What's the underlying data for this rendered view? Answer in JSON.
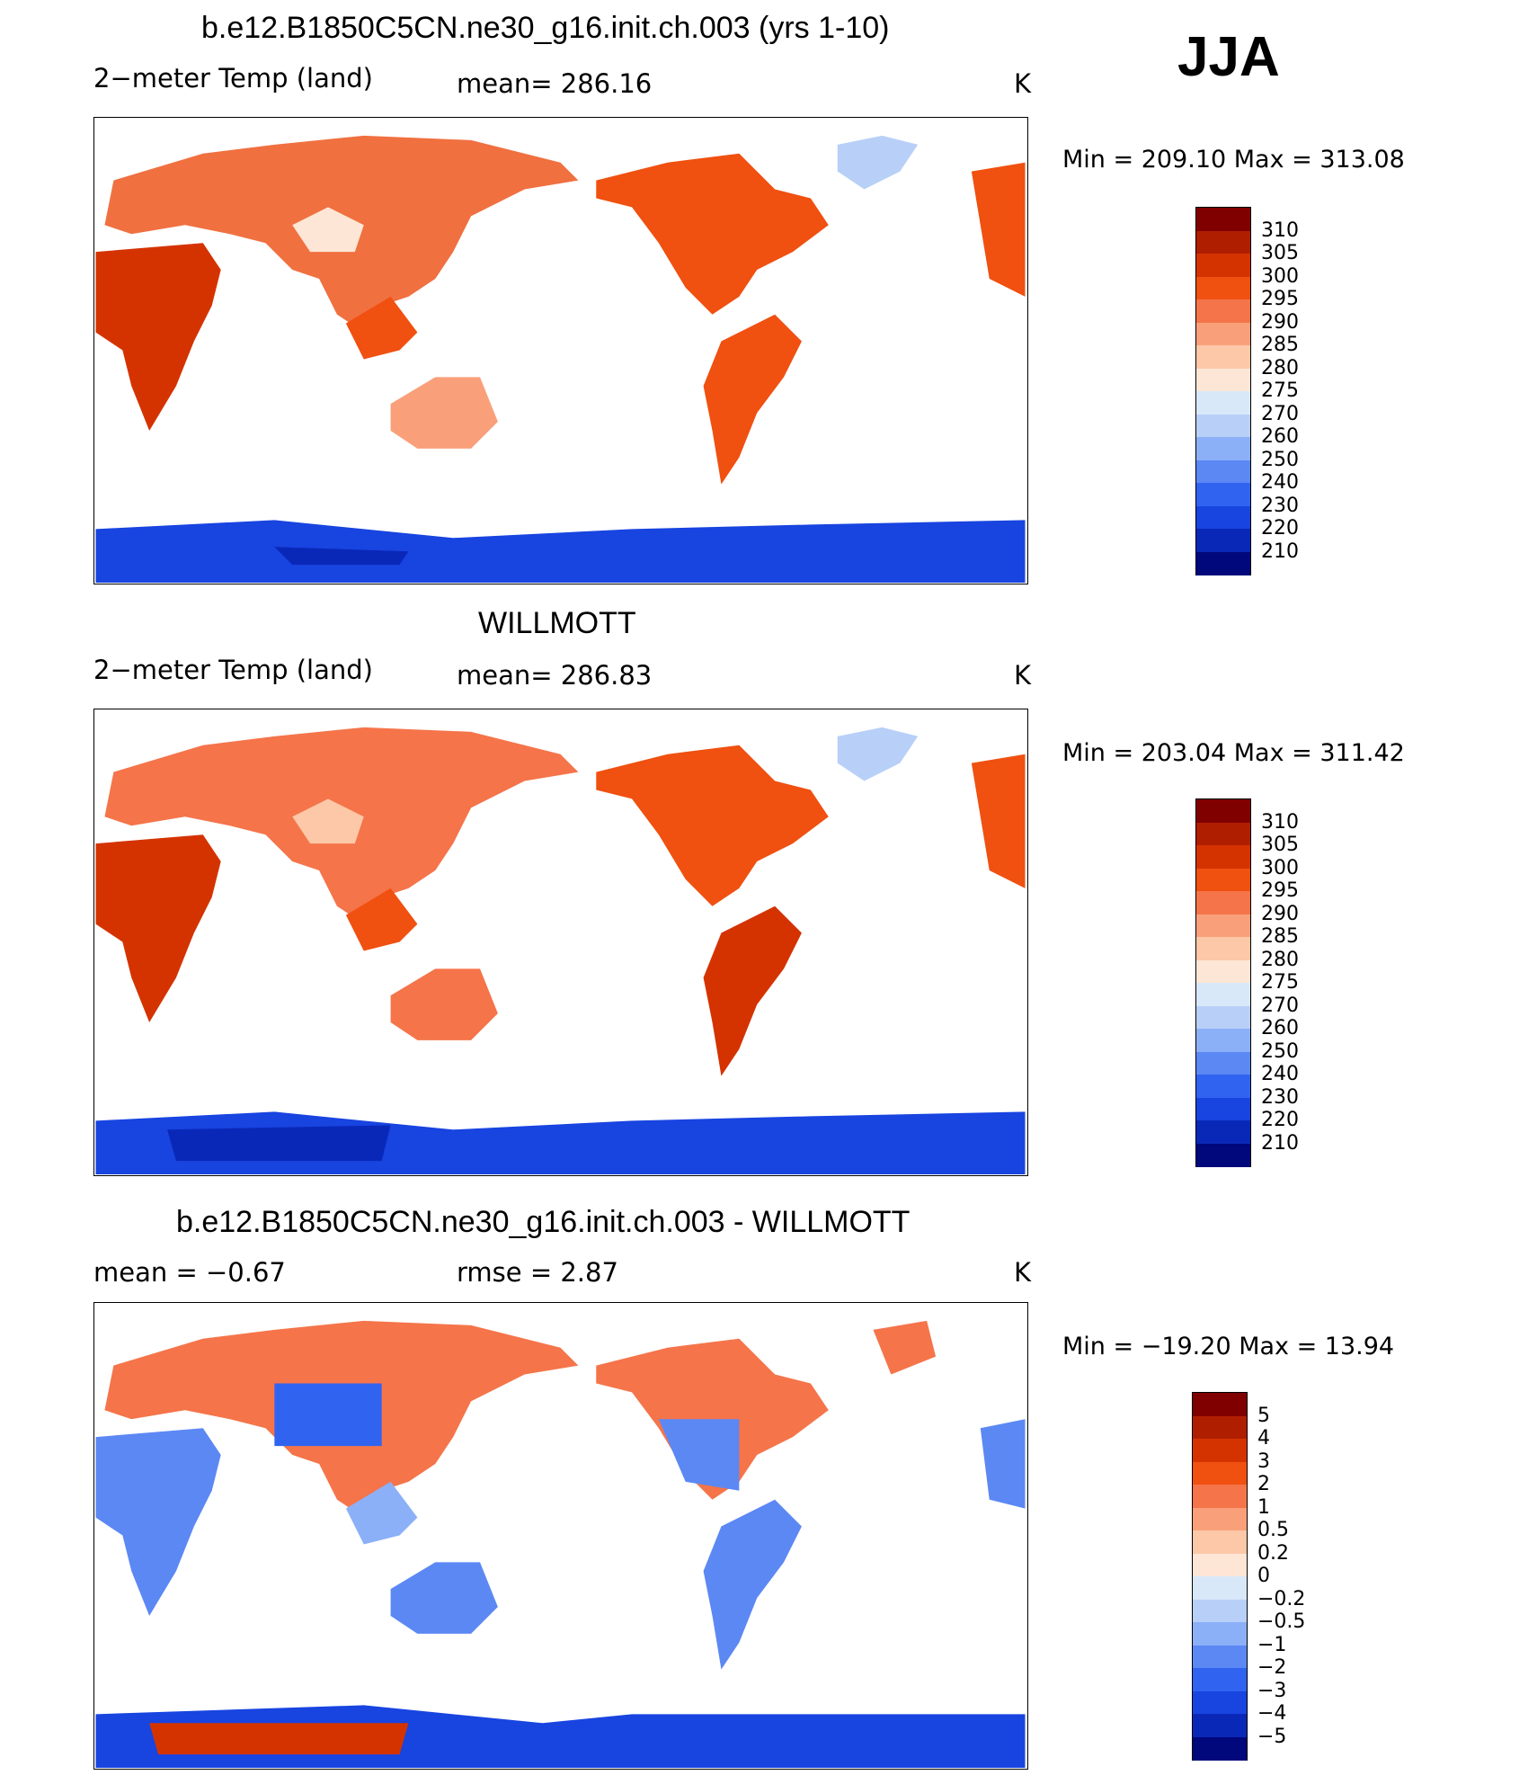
{
  "season": "JJA",
  "panels": [
    {
      "title": "b.e12.B1850C5CN.ne30_g16.init.ch.003 (yrs 1-10)",
      "variable": "2−meter Temp (land)",
      "stat": "mean=  286.16",
      "stat2": "",
      "units": "K",
      "minmax": "Min  =  209.10  Max  =  313.08",
      "colorbar": {
        "labels": [
          "310",
          "305",
          "300",
          "295",
          "290",
          "285",
          "280",
          "275",
          "270",
          "260",
          "250",
          "240",
          "230",
          "220",
          "210"
        ],
        "colors": [
          "#800000",
          "#b01e00",
          "#d43300",
          "#f05010",
          "#f5744a",
          "#f9a07a",
          "#fcc8a8",
          "#fde6d6",
          "#d8e8f8",
          "#b8d0f8",
          "#8cb0f8",
          "#5c88f4",
          "#3064f0",
          "#1844e0",
          "#0a28b8",
          "#00087c"
        ]
      }
    },
    {
      "title": "WILLMOTT",
      "variable": "2−meter Temp (land)",
      "stat": "mean=  286.83",
      "stat2": "",
      "units": "K",
      "minmax": "Min  =  203.04  Max  =  311.42",
      "colorbar": {
        "labels": [
          "310",
          "305",
          "300",
          "295",
          "290",
          "285",
          "280",
          "275",
          "270",
          "260",
          "250",
          "240",
          "230",
          "220",
          "210"
        ],
        "colors": [
          "#800000",
          "#b01e00",
          "#d43300",
          "#f05010",
          "#f5744a",
          "#f9a07a",
          "#fcc8a8",
          "#fde6d6",
          "#d8e8f8",
          "#b8d0f8",
          "#8cb0f8",
          "#5c88f4",
          "#3064f0",
          "#1844e0",
          "#0a28b8",
          "#00087c"
        ]
      }
    },
    {
      "title": "b.e12.B1850C5CN.ne30_g16.init.ch.003 - WILLMOTT",
      "variable": "mean  =     −0.67",
      "stat": "rmse  =     2.87",
      "stat2": "",
      "units": "K",
      "minmax": "Min  =  −19.20  Max  =     13.94",
      "colorbar": {
        "labels": [
          "5",
          "4",
          "3",
          "2",
          "1",
          "0.5",
          "0.2",
          "0",
          "−0.2",
          "−0.5",
          "−1",
          "−2",
          "−3",
          "−4",
          "−5"
        ],
        "colors": [
          "#800000",
          "#b01e00",
          "#d43300",
          "#f05010",
          "#f5744a",
          "#f9a07a",
          "#fcc8a8",
          "#fde6d6",
          "#d8e8f8",
          "#b8d0f8",
          "#8cb0f8",
          "#5c88f4",
          "#3064f0",
          "#1844e0",
          "#0a28b8",
          "#00087c"
        ]
      }
    }
  ]
}
